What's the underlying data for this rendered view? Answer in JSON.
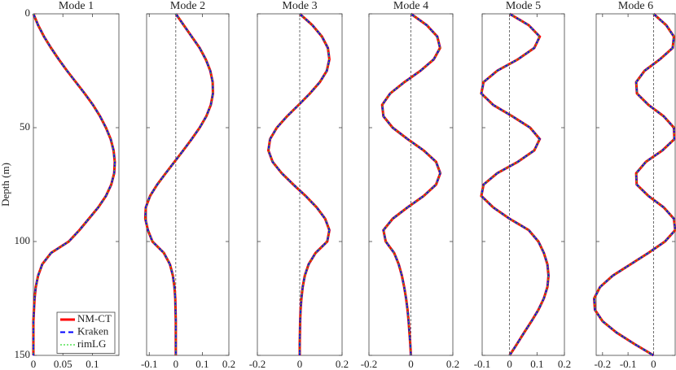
{
  "chart_data": [
    {
      "type": "line",
      "title": "Mode 1",
      "ylabel": "Depth (m)",
      "ytick_labels": true,
      "zero_line": false,
      "legend": "lower left",
      "xlim": [
        0,
        0.145
      ],
      "xticks": [
        0,
        0.05,
        0.1
      ],
      "ylim": [
        0,
        150
      ],
      "yticks": [
        0,
        50,
        100,
        150
      ],
      "y_reversed": true,
      "y": [
        0,
        5,
        10,
        15,
        20,
        25,
        30,
        35,
        40,
        45,
        50,
        55,
        60,
        65,
        70,
        75,
        80,
        85,
        90,
        95,
        100,
        105,
        110,
        115,
        120,
        125,
        130,
        135,
        140,
        145,
        150
      ],
      "series": [
        {
          "name": "NM-CT",
          "color": "#ff0000",
          "style": "solid",
          "values": [
            0,
            0.008,
            0.018,
            0.03,
            0.043,
            0.057,
            0.072,
            0.087,
            0.101,
            0.113,
            0.123,
            0.131,
            0.136,
            0.138,
            0.137,
            0.132,
            0.123,
            0.11,
            0.094,
            0.078,
            0.06,
            0.03,
            0.015,
            0.008,
            0.004,
            0.002,
            0.001,
            0,
            0,
            0,
            0
          ]
        },
        {
          "name": "Kraken",
          "color": "#0000ff",
          "style": "dashed",
          "values": [
            0,
            0.008,
            0.018,
            0.03,
            0.043,
            0.057,
            0.072,
            0.087,
            0.101,
            0.113,
            0.123,
            0.131,
            0.136,
            0.138,
            0.137,
            0.132,
            0.123,
            0.11,
            0.094,
            0.078,
            0.06,
            0.03,
            0.015,
            0.008,
            0.004,
            0.002,
            0.001,
            0,
            0,
            0,
            0
          ]
        },
        {
          "name": "rimLG",
          "color": "#33dd33",
          "style": "dotted",
          "values": [
            0,
            0.008,
            0.018,
            0.03,
            0.043,
            0.057,
            0.072,
            0.087,
            0.101,
            0.113,
            0.123,
            0.131,
            0.136,
            0.138,
            0.137,
            0.132,
            0.123,
            0.11,
            0.094,
            0.078,
            0.06,
            0.03,
            0.015,
            0.008,
            0.004,
            0.002,
            0.001,
            0,
            0,
            0,
            0
          ]
        }
      ]
    },
    {
      "type": "line",
      "title": "Mode 2",
      "ytick_labels": false,
      "zero_line": true,
      "xlim": [
        -0.11,
        0.2
      ],
      "xticks": [
        -0.1,
        0,
        0.1,
        0.2
      ],
      "ylim": [
        0,
        150
      ],
      "yticks": [
        0,
        50,
        100,
        150
      ],
      "y_reversed": true,
      "y": [
        0,
        5,
        10,
        15,
        20,
        25,
        30,
        35,
        40,
        45,
        50,
        55,
        60,
        65,
        70,
        75,
        80,
        85,
        90,
        95,
        100,
        105,
        110,
        115,
        120,
        125,
        130,
        135,
        140,
        145,
        150
      ],
      "series": [
        {
          "color": "#ff0000",
          "style": "solid",
          "values": [
            0,
            0.03,
            0.06,
            0.09,
            0.113,
            0.13,
            0.139,
            0.14,
            0.132,
            0.115,
            0.09,
            0.06,
            0.028,
            -0.005,
            -0.038,
            -0.07,
            -0.097,
            -0.113,
            -0.115,
            -0.105,
            -0.088,
            -0.045,
            -0.022,
            -0.011,
            -0.005,
            -0.002,
            -0.001,
            0,
            0,
            0,
            0
          ]
        },
        {
          "color": "#0000ff",
          "style": "dashed",
          "values": [
            0,
            0.03,
            0.06,
            0.09,
            0.113,
            0.13,
            0.139,
            0.14,
            0.132,
            0.115,
            0.09,
            0.06,
            0.028,
            -0.005,
            -0.038,
            -0.07,
            -0.097,
            -0.113,
            -0.115,
            -0.105,
            -0.088,
            -0.045,
            -0.022,
            -0.011,
            -0.005,
            -0.002,
            -0.001,
            0,
            0,
            0,
            0
          ]
        },
        {
          "color": "#33dd33",
          "style": "dotted",
          "values": [
            0,
            0.03,
            0.06,
            0.09,
            0.113,
            0.13,
            0.139,
            0.14,
            0.132,
            0.115,
            0.09,
            0.06,
            0.028,
            -0.005,
            -0.038,
            -0.07,
            -0.097,
            -0.113,
            -0.115,
            -0.105,
            -0.088,
            -0.045,
            -0.022,
            -0.011,
            -0.005,
            -0.002,
            -0.001,
            0,
            0,
            0,
            0
          ]
        }
      ]
    },
    {
      "type": "line",
      "title": "Mode 3",
      "ytick_labels": false,
      "zero_line": true,
      "xlim": [
        -0.2,
        0.2
      ],
      "xticks": [
        -0.2,
        0,
        0.2
      ],
      "ylim": [
        0,
        150
      ],
      "yticks": [
        0,
        50,
        100,
        150
      ],
      "y_reversed": true,
      "y": [
        0,
        5,
        10,
        15,
        20,
        25,
        30,
        35,
        40,
        45,
        50,
        55,
        60,
        65,
        70,
        75,
        80,
        85,
        90,
        95,
        100,
        105,
        110,
        115,
        120,
        125,
        130,
        135,
        140,
        145,
        150
      ],
      "series": [
        {
          "color": "#ff0000",
          "style": "solid",
          "values": [
            0,
            0.06,
            0.105,
            0.133,
            0.14,
            0.128,
            0.095,
            0.048,
            -0.005,
            -0.06,
            -0.108,
            -0.14,
            -0.148,
            -0.128,
            -0.085,
            -0.03,
            0.028,
            0.08,
            0.12,
            0.14,
            0.13,
            0.075,
            0.042,
            0.024,
            0.014,
            0.008,
            0.004,
            0.002,
            0.001,
            0,
            0
          ]
        },
        {
          "color": "#0000ff",
          "style": "dashed",
          "values": [
            0,
            0.06,
            0.105,
            0.133,
            0.14,
            0.128,
            0.095,
            0.048,
            -0.005,
            -0.06,
            -0.108,
            -0.14,
            -0.148,
            -0.128,
            -0.085,
            -0.03,
            0.028,
            0.08,
            0.12,
            0.14,
            0.13,
            0.075,
            0.042,
            0.024,
            0.014,
            0.008,
            0.004,
            0.002,
            0.001,
            0,
            0
          ]
        },
        {
          "color": "#33dd33",
          "style": "dotted",
          "values": [
            0,
            0.06,
            0.105,
            0.133,
            0.14,
            0.128,
            0.095,
            0.048,
            -0.005,
            -0.06,
            -0.108,
            -0.14,
            -0.148,
            -0.128,
            -0.085,
            -0.03,
            0.028,
            0.08,
            0.12,
            0.14,
            0.13,
            0.075,
            0.042,
            0.024,
            0.014,
            0.008,
            0.004,
            0.002,
            0.001,
            0,
            0
          ]
        }
      ]
    },
    {
      "type": "line",
      "title": "Mode 4",
      "ytick_labels": false,
      "zero_line": true,
      "xlim": [
        -0.2,
        0.2
      ],
      "xticks": [
        -0.2,
        0,
        0.2
      ],
      "ylim": [
        0,
        150
      ],
      "yticks": [
        0,
        50,
        100,
        150
      ],
      "y_reversed": true,
      "y": [
        0,
        5,
        10,
        15,
        20,
        25,
        30,
        35,
        40,
        45,
        50,
        55,
        60,
        65,
        70,
        75,
        80,
        85,
        90,
        95,
        100,
        105,
        110,
        115,
        120,
        125,
        130,
        135,
        140,
        145,
        150
      ],
      "series": [
        {
          "color": "#ff0000",
          "style": "solid",
          "values": [
            0,
            0.076,
            0.126,
            0.139,
            0.109,
            0.046,
            -0.031,
            -0.099,
            -0.137,
            -0.131,
            -0.087,
            -0.016,
            0.061,
            0.12,
            0.14,
            0.12,
            0.061,
            -0.016,
            -0.087,
            -0.131,
            -0.12,
            -0.08,
            -0.058,
            -0.043,
            -0.032,
            -0.023,
            -0.016,
            -0.011,
            -0.007,
            -0.003,
            0
          ]
        },
        {
          "color": "#0000ff",
          "style": "dashed",
          "values": [
            0,
            0.076,
            0.126,
            0.139,
            0.109,
            0.046,
            -0.031,
            -0.099,
            -0.137,
            -0.131,
            -0.087,
            -0.016,
            0.061,
            0.12,
            0.14,
            0.12,
            0.061,
            -0.016,
            -0.087,
            -0.131,
            -0.12,
            -0.08,
            -0.058,
            -0.043,
            -0.032,
            -0.023,
            -0.016,
            -0.011,
            -0.007,
            -0.003,
            0
          ]
        },
        {
          "color": "#33dd33",
          "style": "dotted",
          "values": [
            0,
            0.076,
            0.126,
            0.139,
            0.109,
            0.046,
            -0.031,
            -0.099,
            -0.137,
            -0.131,
            -0.087,
            -0.016,
            0.061,
            0.12,
            0.14,
            0.12,
            0.061,
            -0.016,
            -0.087,
            -0.131,
            -0.12,
            -0.08,
            -0.058,
            -0.043,
            -0.032,
            -0.023,
            -0.016,
            -0.011,
            -0.007,
            -0.003,
            0
          ]
        }
      ]
    },
    {
      "type": "line",
      "title": "Mode 5",
      "ytick_labels": false,
      "zero_line": true,
      "xlim": [
        -0.1,
        0.2
      ],
      "xticks": [
        -0.1,
        0,
        0.1,
        0.2
      ],
      "ylim": [
        0,
        150
      ],
      "yticks": [
        0,
        50,
        100,
        150
      ],
      "y_reversed": true,
      "y": [
        0,
        5,
        10,
        15,
        20,
        25,
        30,
        35,
        40,
        45,
        50,
        55,
        60,
        65,
        70,
        75,
        80,
        85,
        90,
        95,
        100,
        105,
        110,
        115,
        120,
        125,
        130,
        135,
        140,
        145,
        150
      ],
      "series": [
        {
          "color": "#ff0000",
          "style": "solid",
          "values": [
            0,
            0.07,
            0.11,
            0.09,
            0.03,
            -0.045,
            -0.095,
            -0.103,
            -0.06,
            0.01,
            0.075,
            0.11,
            0.09,
            0.03,
            -0.045,
            -0.095,
            -0.103,
            -0.06,
            0,
            0.07,
            0.105,
            0.125,
            0.138,
            0.142,
            0.138,
            0.125,
            0.105,
            0.08,
            0.053,
            0.027,
            0
          ]
        },
        {
          "color": "#0000ff",
          "style": "dashed",
          "values": [
            0,
            0.07,
            0.11,
            0.09,
            0.03,
            -0.045,
            -0.095,
            -0.103,
            -0.06,
            0.01,
            0.075,
            0.11,
            0.09,
            0.03,
            -0.045,
            -0.095,
            -0.103,
            -0.06,
            0,
            0.07,
            0.105,
            0.125,
            0.138,
            0.142,
            0.138,
            0.125,
            0.105,
            0.08,
            0.053,
            0.027,
            0
          ]
        },
        {
          "color": "#33dd33",
          "style": "dotted",
          "values": [
            0,
            0.07,
            0.11,
            0.09,
            0.03,
            -0.045,
            -0.095,
            -0.103,
            -0.06,
            0.01,
            0.075,
            0.11,
            0.09,
            0.03,
            -0.045,
            -0.095,
            -0.103,
            -0.06,
            0,
            0.07,
            0.105,
            0.125,
            0.138,
            0.142,
            0.138,
            0.125,
            0.105,
            0.08,
            0.053,
            0.027,
            0
          ]
        }
      ]
    },
    {
      "type": "line",
      "title": "Mode 6",
      "ytick_labels": false,
      "zero_line": true,
      "xlim": [
        -0.225,
        0.085
      ],
      "xticks": [
        -0.2,
        -0.1,
        0
      ],
      "ylim": [
        0,
        150
      ],
      "yticks": [
        0,
        50,
        100,
        150
      ],
      "y_reversed": true,
      "y": [
        0,
        5,
        10,
        15,
        20,
        25,
        30,
        35,
        40,
        45,
        50,
        55,
        60,
        65,
        70,
        75,
        80,
        85,
        90,
        95,
        100,
        105,
        110,
        115,
        120,
        125,
        130,
        135,
        140,
        145,
        150
      ],
      "series": [
        {
          "color": "#ff0000",
          "style": "solid",
          "values": [
            0,
            0.05,
            0.08,
            0.075,
            0.025,
            -0.035,
            -0.068,
            -0.065,
            -0.02,
            0.04,
            0.08,
            0.082,
            0.035,
            -0.03,
            -0.068,
            -0.066,
            -0.02,
            0.04,
            0.08,
            0.085,
            0.045,
            -0.02,
            -0.09,
            -0.16,
            -0.21,
            -0.233,
            -0.23,
            -0.2,
            -0.145,
            -0.075,
            0
          ]
        },
        {
          "color": "#0000ff",
          "style": "dashed",
          "values": [
            0,
            0.05,
            0.08,
            0.075,
            0.025,
            -0.035,
            -0.068,
            -0.065,
            -0.02,
            0.04,
            0.08,
            0.082,
            0.035,
            -0.03,
            -0.068,
            -0.066,
            -0.02,
            0.04,
            0.08,
            0.085,
            0.045,
            -0.02,
            -0.09,
            -0.16,
            -0.21,
            -0.233,
            -0.23,
            -0.2,
            -0.145,
            -0.075,
            0
          ]
        },
        {
          "color": "#33dd33",
          "style": "dotted",
          "values": [
            0,
            0.05,
            0.08,
            0.075,
            0.025,
            -0.035,
            -0.068,
            -0.065,
            -0.02,
            0.04,
            0.08,
            0.082,
            0.035,
            -0.03,
            -0.068,
            -0.066,
            -0.02,
            0.04,
            0.08,
            0.085,
            0.045,
            -0.02,
            -0.09,
            -0.16,
            -0.21,
            -0.233,
            -0.23,
            -0.2,
            -0.145,
            -0.075,
            0
          ]
        }
      ]
    }
  ]
}
